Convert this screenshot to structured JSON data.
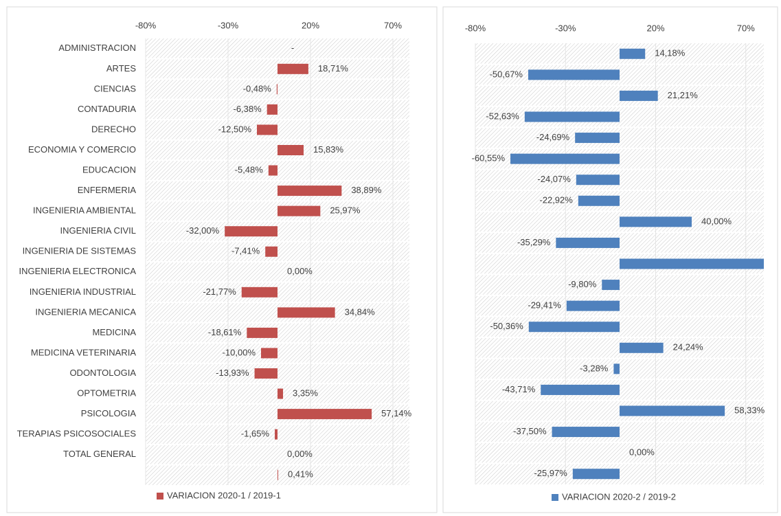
{
  "chart_data": [
    {
      "type": "bar",
      "orientation": "horizontal",
      "categories": [
        "ADMINISTRACION",
        "ARTES",
        "CIENCIAS",
        "CONTADURIA",
        "DERECHO",
        "ECONOMIA Y COMERCIO",
        "EDUCACION",
        "ENFERMERIA",
        "INGENIERIA AMBIENTAL",
        "INGENIERIA CIVIL",
        "INGENIERIA DE SISTEMAS",
        "INGENIERIA ELECTRONICA",
        "INGENIERIA INDUSTRIAL",
        "INGENIERIA MECANICA",
        "MEDICINA",
        "MEDICINA VETERINARIA",
        "ODONTOLOGIA",
        "OPTOMETRIA",
        "PSICOLOGIA",
        "TERAPIAS PSICOSOCIALES",
        "TOTAL GENERAL",
        null
      ],
      "series": [
        {
          "name": "VARIACION 2020-1 / 2019-1",
          "color": "#c0504d",
          "values": [
            null,
            18.71,
            -0.48,
            -6.38,
            -12.5,
            15.83,
            -5.48,
            38.89,
            25.97,
            -32.0,
            -7.41,
            0.0,
            -21.77,
            34.84,
            -18.61,
            -10.0,
            -13.93,
            3.35,
            57.14,
            -1.65,
            0.0,
            0.41
          ],
          "value_labels": [
            "-",
            "18,71%",
            "-0,48%",
            "-6,38%",
            "-12,50%",
            "15,83%",
            "-5,48%",
            "38,89%",
            "25,97%",
            "-32,00%",
            "-7,41%",
            "0,00%",
            "-21,77%",
            "34,84%",
            "-18,61%",
            "-10,00%",
            "-13,93%",
            "3,35%",
            "57,14%",
            "-1,65%",
            "0,00%",
            "0,41%"
          ]
        }
      ],
      "xlim": [
        -80,
        80
      ],
      "xticks": [
        {
          "value": -80,
          "label": "-80%"
        },
        {
          "value": -30,
          "label": "-30%"
        },
        {
          "value": 20,
          "label": "20%"
        },
        {
          "value": 70,
          "label": "70%"
        }
      ],
      "grid": true,
      "legend": "bottom"
    },
    {
      "type": "bar",
      "orientation": "horizontal",
      "series": [
        {
          "name": "VARIACION 2020-2 / 2019-2",
          "color": "#4f81bd",
          "values": [
            14.18,
            -50.67,
            21.21,
            -52.63,
            -24.69,
            -60.55,
            -24.07,
            -22.92,
            40.0,
            -35.29,
            81,
            -9.8,
            -29.41,
            -50.36,
            24.24,
            -3.28,
            -43.71,
            58.33,
            -37.5,
            0.0,
            -25.97
          ],
          "value_labels": [
            "14,18%",
            "-50,67%",
            "21,21%",
            "-52,63%",
            "-24,69%",
            "-60,55%",
            "-24,07%",
            "-22,92%",
            "40,00%",
            "-35,29%",
            null,
            "-9,80%",
            "-29,41%",
            "-50,36%",
            "24,24%",
            "-3,28%",
            "-43,71%",
            "58,33%",
            "-37,50%",
            "0,00%",
            "-25,97%"
          ]
        }
      ],
      "xlim": [
        -80,
        80
      ],
      "xticks": [
        {
          "value": -80,
          "label": "-80%"
        },
        {
          "value": -30,
          "label": "-30%"
        },
        {
          "value": 20,
          "label": "20%"
        },
        {
          "value": 70,
          "label": "70%"
        }
      ],
      "grid": true,
      "legend": "bottom"
    }
  ]
}
